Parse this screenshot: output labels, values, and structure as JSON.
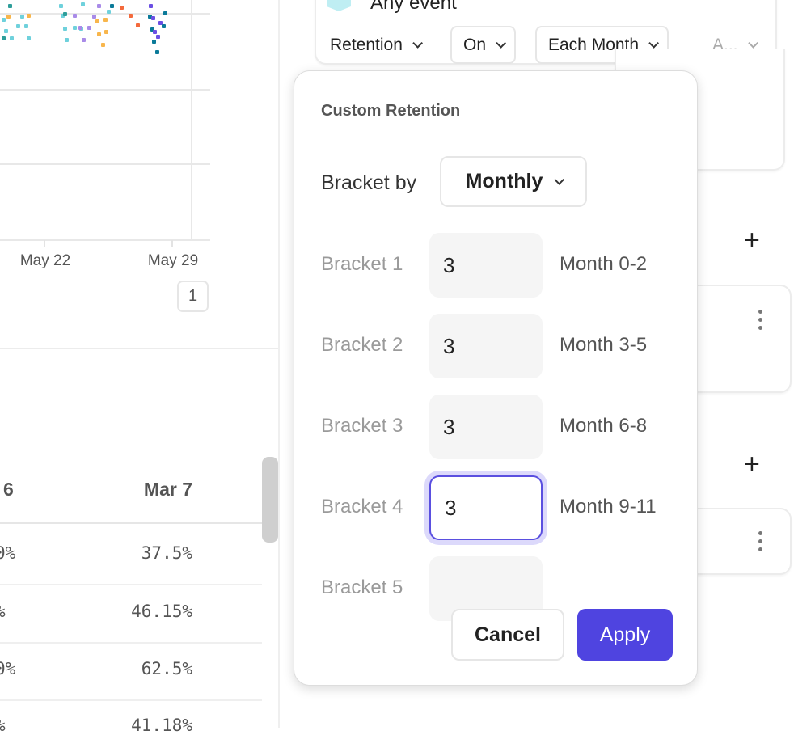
{
  "chart": {
    "x_ticks": [
      "May 22",
      "May 29"
    ],
    "colors": [
      "#6fd1dc",
      "#f8b64c",
      "#2e9e9a",
      "#a98be8",
      "#0b7a99",
      "#f46a3c",
      "#6b4fe3"
    ],
    "page_number": "1"
  },
  "table": {
    "headers": [
      "6",
      "Mar 7"
    ],
    "rows": [
      [
        "0%",
        "37.5%"
      ],
      [
        "%",
        "46.15%"
      ],
      [
        "0%",
        "62.5%"
      ],
      [
        "%",
        "41.18%"
      ]
    ]
  },
  "query": {
    "event_label": "Any event",
    "controls": [
      "Retention",
      "On",
      "Each Month",
      "A..."
    ]
  },
  "popup": {
    "title": "Custom Retention",
    "bracket_by_label": "Bracket by",
    "bracket_by_value": "Monthly",
    "brackets": [
      {
        "label": "Bracket 1",
        "value": "3",
        "range": "Month 0-2"
      },
      {
        "label": "Bracket 2",
        "value": "3",
        "range": "Month 3-5"
      },
      {
        "label": "Bracket 3",
        "value": "3",
        "range": "Month 6-8"
      },
      {
        "label": "Bracket 4",
        "value": "3",
        "range": "Month 9-11"
      },
      {
        "label": "Bracket 5",
        "value": "",
        "range": ""
      }
    ],
    "cancel_label": "Cancel",
    "apply_label": "Apply",
    "accent": "#4f44e0"
  }
}
